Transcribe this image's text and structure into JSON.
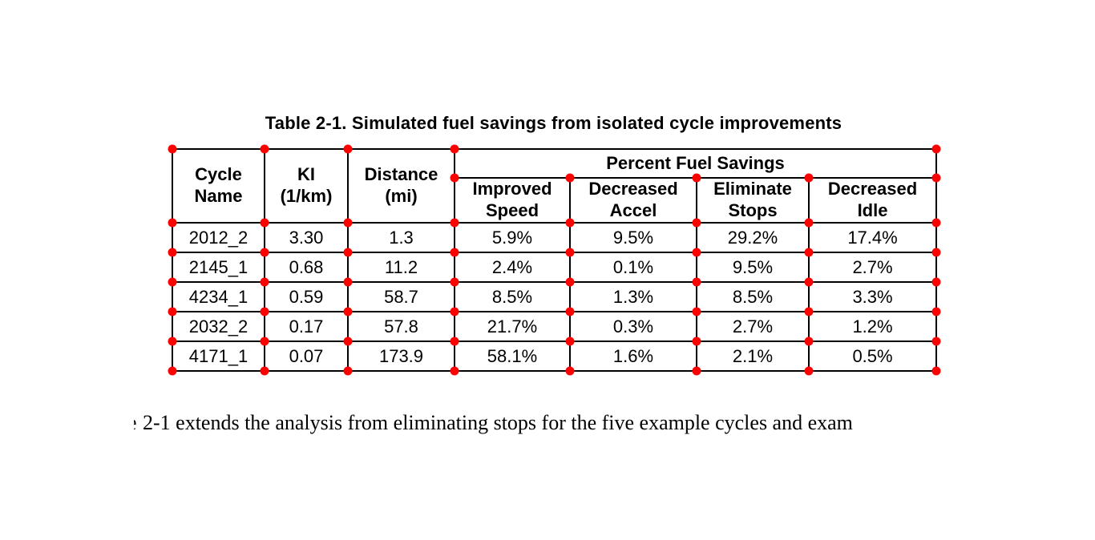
{
  "table": {
    "title": "Table 2-1. Simulated fuel savings from isolated cycle improvements",
    "col_headers": [
      "Cycle\nName",
      "KI\n(1/km)",
      "Distance\n(mi)"
    ],
    "group_header": "Percent Fuel Savings",
    "sub_headers": [
      "Improved\nSpeed",
      "Decreased\nAccel",
      "Eliminate\nStops",
      "Decreased\nIdle"
    ],
    "rows": [
      [
        "2012_2",
        "3.30",
        "1.3",
        "5.9%",
        "9.5%",
        "29.2%",
        "17.4%"
      ],
      [
        "2145_1",
        "0.68",
        "11.2",
        "2.4%",
        "0.1%",
        "9.5%",
        "2.7%"
      ],
      [
        "4234_1",
        "0.59",
        "58.7",
        "8.5%",
        "1.3%",
        "8.5%",
        "3.3%"
      ],
      [
        "2032_2",
        "0.17",
        "57.8",
        "21.7%",
        "0.3%",
        "2.7%",
        "1.2%"
      ],
      [
        "4171_1",
        "0.07",
        "173.9",
        "58.1%",
        "1.6%",
        "2.1%",
        "0.5%"
      ]
    ]
  },
  "body": {
    "clipped_char": "e",
    "text": "2-1 extends the analysis from eliminating stops for the five example cycles and exam"
  },
  "annotations": {
    "marker_shape": "circle",
    "marker_color": "#ff0000"
  }
}
